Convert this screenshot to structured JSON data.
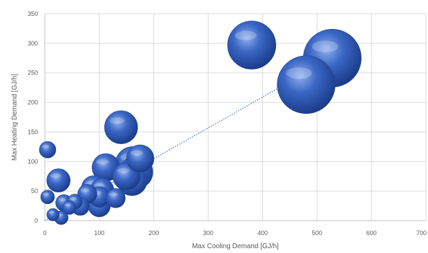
{
  "chart_data": {
    "type": "bubble",
    "title": "",
    "xlabel": "Max Cooling Demand [GJ/h]",
    "ylabel": "Max Heating Demand [GJ/h]",
    "xlim": [
      0,
      700
    ],
    "ylim": [
      0,
      350
    ],
    "x_ticks": [
      "0",
      "100",
      "200",
      "300",
      "400",
      "500",
      "600",
      "700"
    ],
    "y_ticks": [
      "0",
      "50",
      "100",
      "150",
      "200",
      "250",
      "300",
      "350"
    ],
    "grid": true,
    "legend": "none",
    "bubble_color": "#3a66c4",
    "trendline": {
      "style": "dotted",
      "from": [
        0,
        0
      ],
      "to": [
        440,
        230
      ]
    },
    "series": [
      {
        "points": [
          {
            "x": 5,
            "y": 120,
            "size": 12
          },
          {
            "x": 25,
            "y": 68,
            "size": 17
          },
          {
            "x": 5,
            "y": 40,
            "size": 10
          },
          {
            "x": 15,
            "y": 10,
            "size": 9
          },
          {
            "x": 30,
            "y": 5,
            "size": 10
          },
          {
            "x": 35,
            "y": 30,
            "size": 12
          },
          {
            "x": 45,
            "y": 22,
            "size": 10
          },
          {
            "x": 55,
            "y": 32,
            "size": 11
          },
          {
            "x": 65,
            "y": 24,
            "size": 13
          },
          {
            "x": 78,
            "y": 45,
            "size": 14
          },
          {
            "x": 90,
            "y": 55,
            "size": 18
          },
          {
            "x": 100,
            "y": 40,
            "size": 15
          },
          {
            "x": 100,
            "y": 25,
            "size": 16
          },
          {
            "x": 105,
            "y": 52,
            "size": 17
          },
          {
            "x": 112,
            "y": 90,
            "size": 20
          },
          {
            "x": 130,
            "y": 38,
            "size": 14
          },
          {
            "x": 140,
            "y": 158,
            "size": 24
          },
          {
            "x": 150,
            "y": 75,
            "size": 20
          },
          {
            "x": 160,
            "y": 68,
            "size": 22
          },
          {
            "x": 168,
            "y": 82,
            "size": 24
          },
          {
            "x": 175,
            "y": 105,
            "size": 20
          },
          {
            "x": 162,
            "y": 95,
            "size": 26
          },
          {
            "x": 380,
            "y": 297,
            "size": 35
          },
          {
            "x": 528,
            "y": 275,
            "size": 42
          },
          {
            "x": 480,
            "y": 230,
            "size": 42
          }
        ]
      }
    ]
  }
}
